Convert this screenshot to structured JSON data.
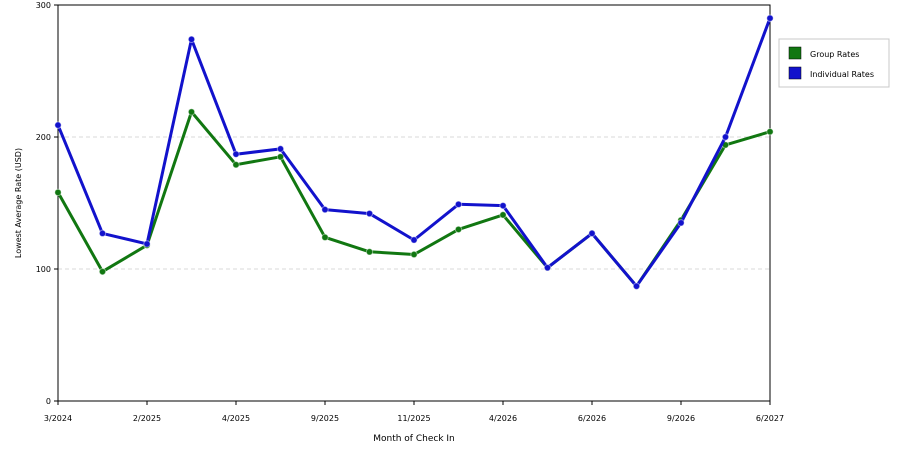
{
  "chart_data": {
    "type": "line",
    "title": "",
    "xlabel": "Month of Check In",
    "ylabel": "Lowest Average Rate (USD)",
    "ylim": [
      0,
      300
    ],
    "yticks": [
      0,
      100,
      200,
      300
    ],
    "grid": "horizontal dashed",
    "legend_position": "right",
    "x_tick_labels": [
      "3/2024",
      "2/2025",
      "4/2025",
      "9/2025",
      "11/2025",
      "4/2026",
      "6/2026",
      "9/2026",
      "6/2027"
    ],
    "x_tick_positions": [
      0,
      2,
      4,
      6,
      8,
      10,
      12,
      14,
      16
    ],
    "point_count": 17,
    "series": [
      {
        "name": "Group Rates",
        "color": "#117711",
        "values": [
          158,
          98,
          118,
          219,
          179,
          185,
          124,
          113,
          111,
          130,
          141,
          101,
          127,
          87,
          137,
          194,
          204
        ]
      },
      {
        "name": "Individual Rates",
        "color": "#1212cc",
        "values": [
          209,
          127,
          119,
          274,
          187,
          191,
          145,
          142,
          122,
          149,
          148,
          101,
          127,
          87,
          135,
          200,
          290
        ]
      }
    ]
  }
}
